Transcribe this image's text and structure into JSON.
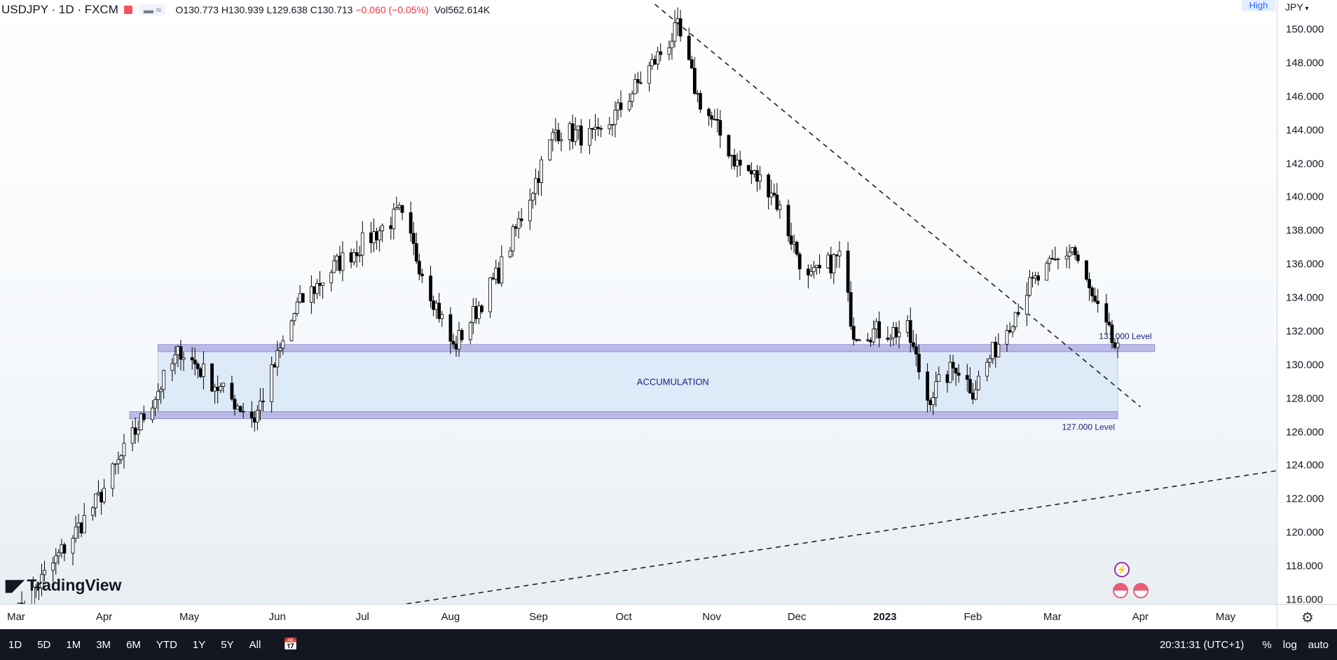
{
  "legend": {
    "symbol": "USDJPY · 1D · FXCM",
    "ohlc": "O130.773 H130.939 L129.638 C130.713",
    "change": "−0.060 (−0.05%)",
    "volume": "Vol562.614K",
    "indicator_icons": "▬ ≈"
  },
  "high_chip": "High",
  "currency": "JPY",
  "branding": "TradingView",
  "time_display": "20:31:31 (UTC+1)",
  "bottom_periods": [
    "1D",
    "5D",
    "1M",
    "3M",
    "6M",
    "YTD",
    "1Y",
    "5Y",
    "All"
  ],
  "bottom_right": [
    "%",
    "log",
    "auto"
  ],
  "colors": {
    "candle_body": "#000000",
    "zone_fill": "#d6e6f7",
    "level_line": "#b4b0e4",
    "annotation": "#1a237e"
  },
  "chart_data": {
    "type": "candlestick",
    "instrument": "USDJPY",
    "timeframe": "1D",
    "exchange": "FXCM",
    "y_ticks": [
      150,
      148,
      146,
      144,
      142,
      140,
      138,
      136,
      134,
      132,
      130,
      128,
      126,
      124,
      122,
      120,
      118,
      116
    ],
    "x_ticks": [
      {
        "label": "Mar",
        "date": "2022-03-01"
      },
      {
        "label": "Apr",
        "date": "2022-04-01"
      },
      {
        "label": "May",
        "date": "2022-05-01"
      },
      {
        "label": "Jun",
        "date": "2022-06-01"
      },
      {
        "label": "Jul",
        "date": "2022-07-01"
      },
      {
        "label": "Aug",
        "date": "2022-08-01"
      },
      {
        "label": "Sep",
        "date": "2022-09-01"
      },
      {
        "label": "Oct",
        "date": "2022-10-01"
      },
      {
        "label": "Nov",
        "date": "2022-11-01"
      },
      {
        "label": "Dec",
        "date": "2022-12-01"
      },
      {
        "label": "2023",
        "date": "2023-01-01"
      },
      {
        "label": "Feb",
        "date": "2023-02-01"
      },
      {
        "label": "Mar",
        "date": "2023-03-01"
      },
      {
        "label": "Apr",
        "date": "2023-04-01"
      },
      {
        "label": "May",
        "date": "2023-05-01"
      }
    ],
    "key_closes": [
      {
        "date": "2022-03-01",
        "close": 115.0
      },
      {
        "date": "2022-03-30",
        "close": 122.0
      },
      {
        "date": "2022-04-20",
        "close": 128.5
      },
      {
        "date": "2022-04-28",
        "close": 130.9
      },
      {
        "date": "2022-05-12",
        "close": 128.5
      },
      {
        "date": "2022-05-24",
        "close": 126.8
      },
      {
        "date": "2022-06-08",
        "close": 133.5
      },
      {
        "date": "2022-06-22",
        "close": 136.0
      },
      {
        "date": "2022-07-14",
        "close": 139.0
      },
      {
        "date": "2022-08-02",
        "close": 131.0
      },
      {
        "date": "2022-08-18",
        "close": 135.5
      },
      {
        "date": "2022-09-07",
        "close": 144.0
      },
      {
        "date": "2022-09-22",
        "close": 143.5
      },
      {
        "date": "2022-10-20",
        "close": 150.0
      },
      {
        "date": "2022-10-27",
        "close": 146.0
      },
      {
        "date": "2022-11-10",
        "close": 142.0
      },
      {
        "date": "2022-11-22",
        "close": 140.5
      },
      {
        "date": "2022-12-05",
        "close": 135.0
      },
      {
        "date": "2022-12-16",
        "close": 136.5
      },
      {
        "date": "2022-12-21",
        "close": 132.0
      },
      {
        "date": "2023-01-09",
        "close": 132.0
      },
      {
        "date": "2023-01-16",
        "close": 128.0
      },
      {
        "date": "2023-01-26",
        "close": 130.0
      },
      {
        "date": "2023-02-01",
        "close": 128.5
      },
      {
        "date": "2023-02-20",
        "close": 134.5
      },
      {
        "date": "2023-03-08",
        "close": 137.0
      },
      {
        "date": "2023-03-16",
        "close": 133.5
      },
      {
        "date": "2023-03-24",
        "close": 130.7
      }
    ],
    "zone": {
      "label": "ACCUMULATION",
      "from_date": "2022-04-20",
      "to_date": "2023-03-24",
      "low": 127.0,
      "high": 131.0
    },
    "levels": [
      {
        "label": "131.000 Level",
        "price": 131.0,
        "from_date": "2022-04-20",
        "to_date": "2023-04-06"
      },
      {
        "label": "127.000 Level",
        "price": 127.0,
        "from_date": "2022-04-10",
        "to_date": "2023-03-24"
      }
    ],
    "trendlines": [
      {
        "style": "dashed",
        "from": {
          "date": "2022-10-12",
          "price": 151.5
        },
        "to": {
          "date": "2023-04-01",
          "price": 127.5
        }
      },
      {
        "style": "dashed",
        "from": {
          "date": "2022-07-07",
          "price": 115.5
        },
        "to": {
          "date": "2023-05-31",
          "price": 124.0
        }
      }
    ],
    "y_unit": "JPY"
  }
}
